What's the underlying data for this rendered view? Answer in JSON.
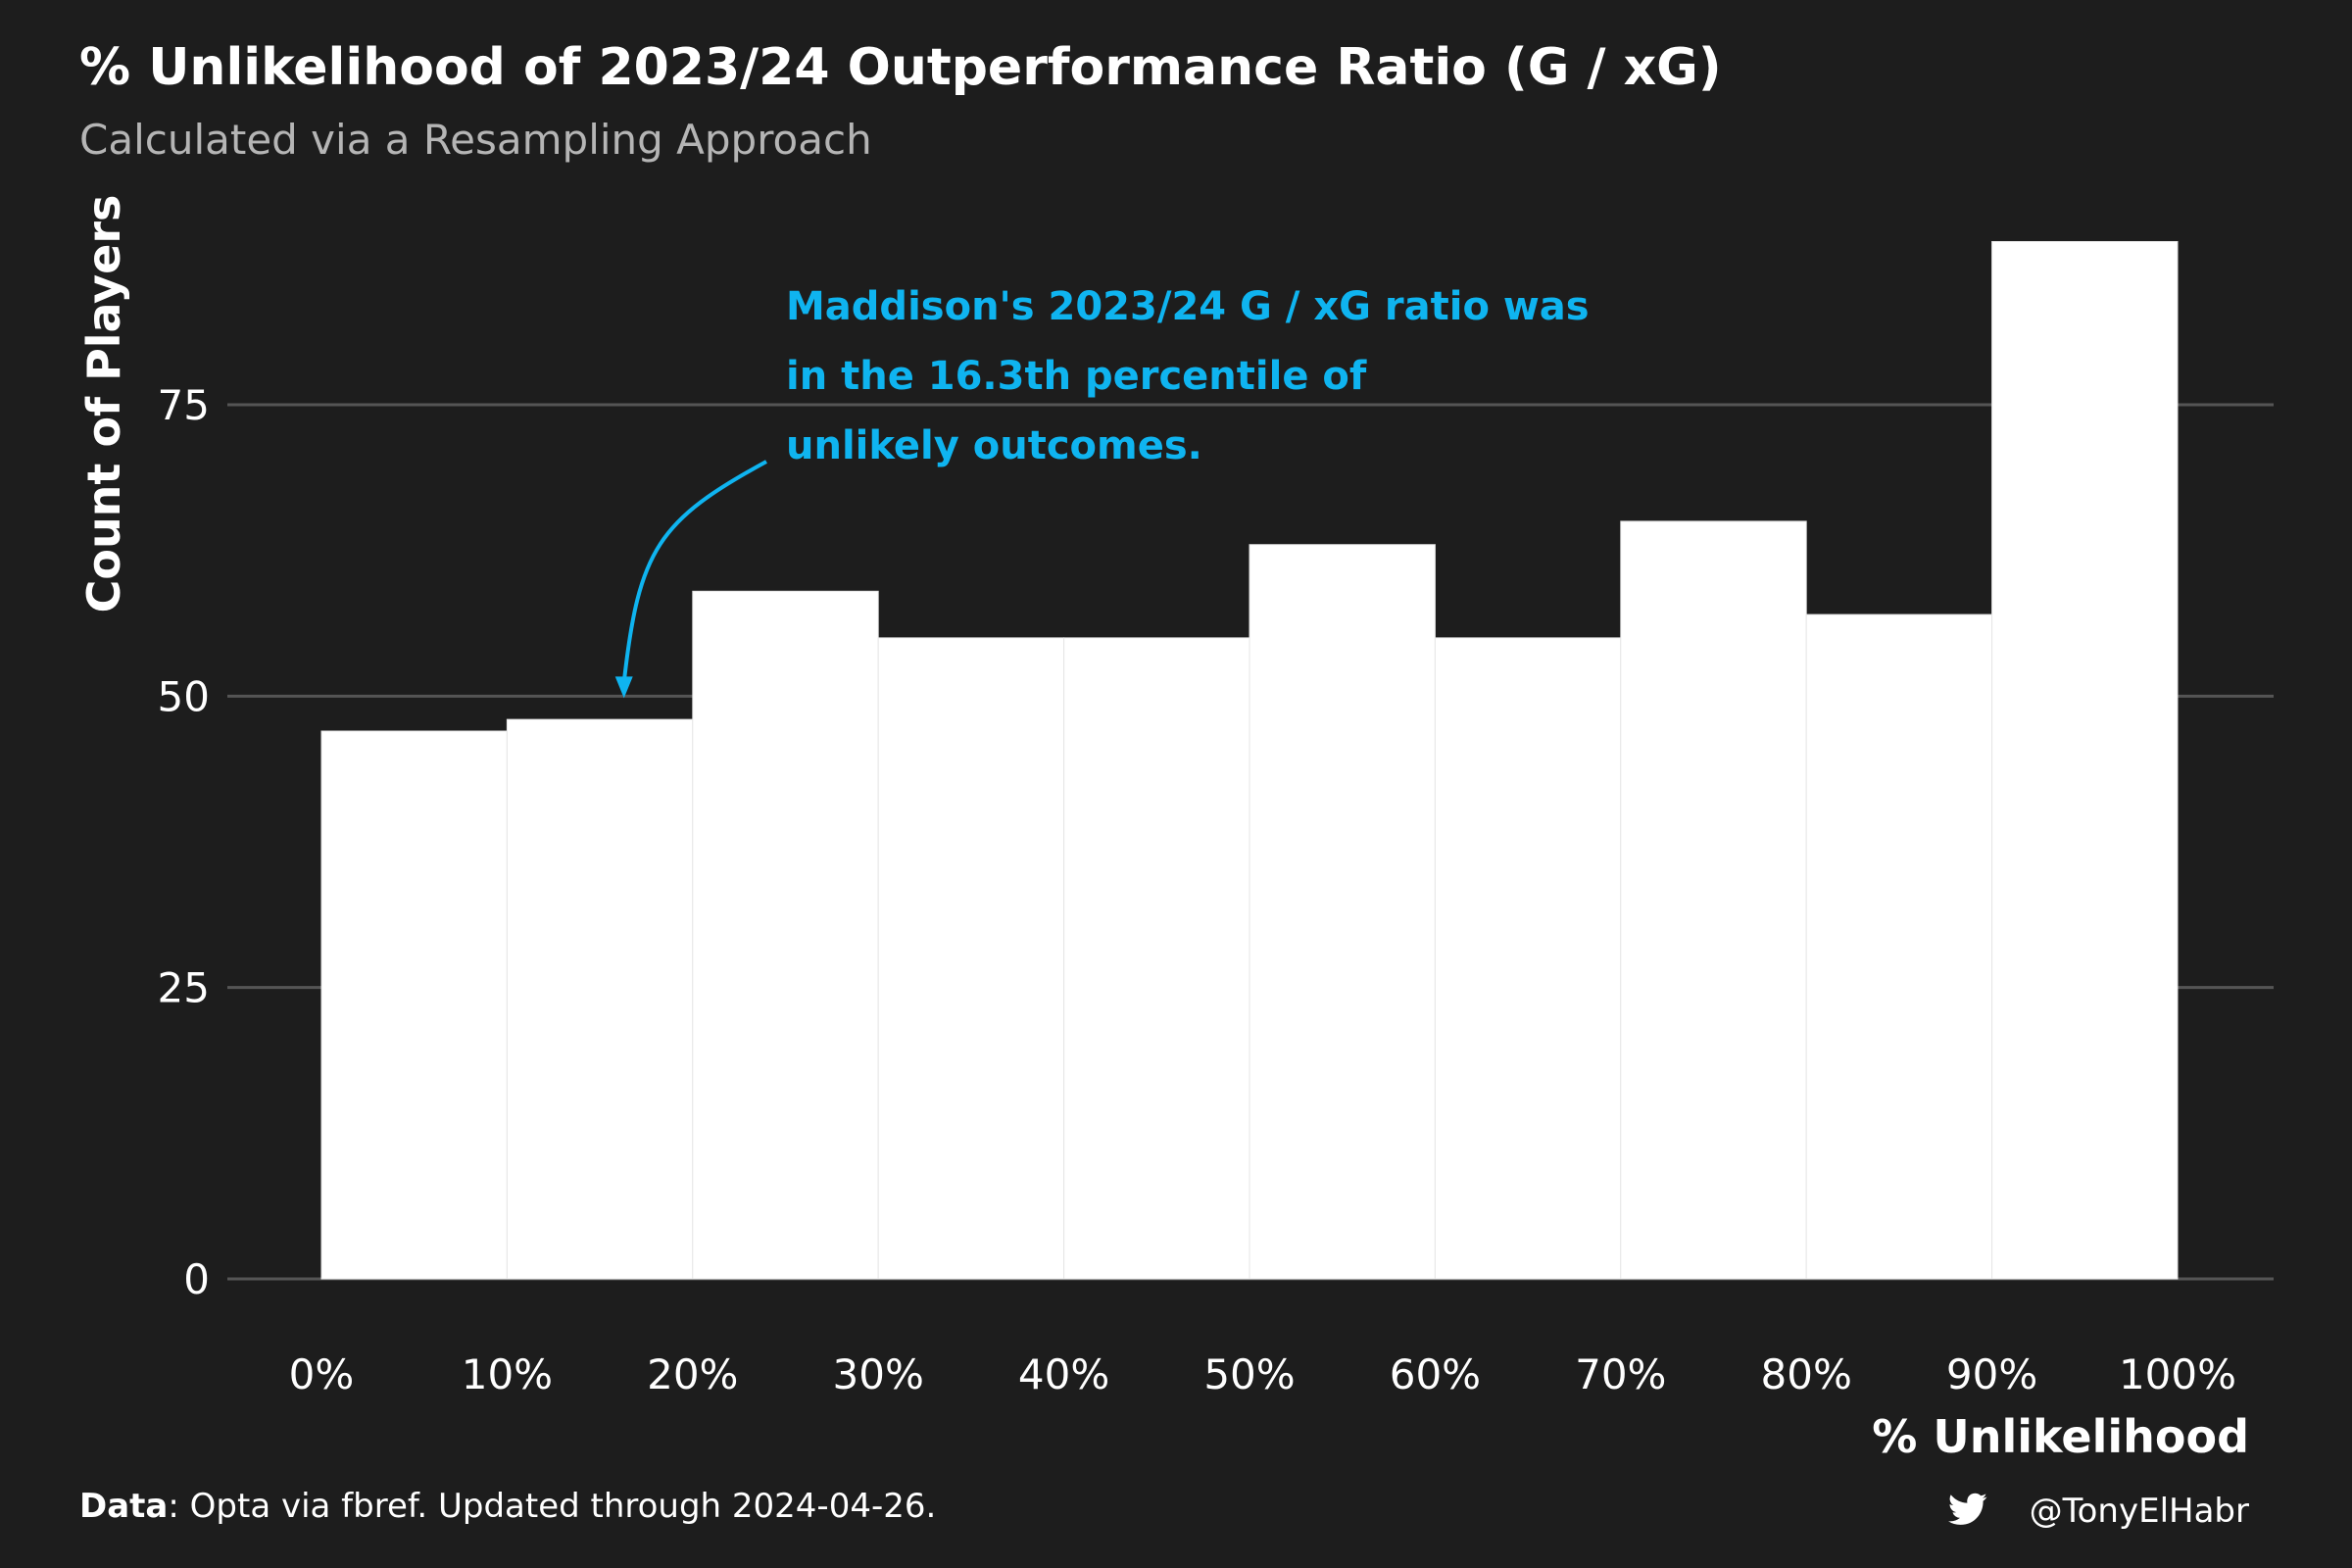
{
  "chart_data": {
    "type": "bar",
    "title": "% Unlikelihood of 2023/24 Outperformance Ratio (G / xG)",
    "subtitle": "Calculated via a Resampling Approach",
    "xlabel": "% Unlikelihood",
    "ylabel": "Count of Players",
    "x_ticks": [
      "0%",
      "10%",
      "20%",
      "30%",
      "40%",
      "50%",
      "60%",
      "70%",
      "80%",
      "90%",
      "100%"
    ],
    "y_ticks": [
      0,
      25,
      50,
      75
    ],
    "bins": [
      {
        "from": 0,
        "to": 10,
        "value": 47
      },
      {
        "from": 10,
        "to": 20,
        "value": 48
      },
      {
        "from": 20,
        "to": 30,
        "value": 59
      },
      {
        "from": 30,
        "to": 40,
        "value": 55
      },
      {
        "from": 40,
        "to": 50,
        "value": 55
      },
      {
        "from": 50,
        "to": 60,
        "value": 63
      },
      {
        "from": 60,
        "to": 70,
        "value": 55
      },
      {
        "from": 70,
        "to": 80,
        "value": 65
      },
      {
        "from": 80,
        "to": 90,
        "value": 57
      },
      {
        "from": 90,
        "to": 100,
        "value": 89
      }
    ],
    "ylim": [
      0,
      90
    ],
    "xlim": [
      0,
      100
    ],
    "grid": true,
    "annotation": {
      "lines": [
        "Maddison's 2023/24 G / xG ratio was",
        "in the 16.3th percentile of",
        "unlikely outcomes."
      ],
      "arrow_target": {
        "x": 16.3,
        "y": 50
      }
    },
    "caption": {
      "bold": "Data",
      "text": ": Opta via fbref. Updated through 2024-04-26."
    },
    "credit": "@TonyElHabr"
  },
  "colors": {
    "background": "#1d1d1d",
    "bar_fill": "#ffffff",
    "bar_edge": "#e6e6e6",
    "grid": "#555555",
    "annotation": "#0fb4f0",
    "subtitle": "#b5b5b5"
  },
  "icons": {
    "credit": "twitter-bird-icon"
  }
}
